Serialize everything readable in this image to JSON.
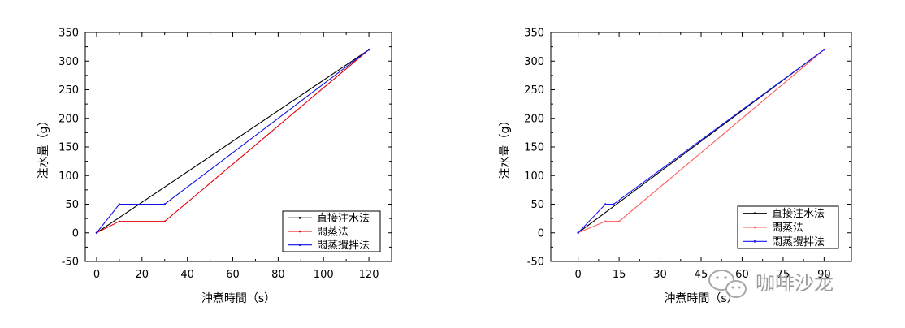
{
  "chart_data": [
    {
      "type": "line",
      "xlabel": "沖煮時間（s）",
      "ylabel": "注水量（g）",
      "xlim": [
        -5,
        130
      ],
      "ylim": [
        -50,
        350
      ],
      "xticks": [
        "0",
        "20",
        "40",
        "60",
        "80",
        "100",
        "120"
      ],
      "xtick_values": [
        0,
        20,
        40,
        60,
        80,
        100,
        120
      ],
      "yticks": [
        "-50",
        "0",
        "50",
        "100",
        "150",
        "200",
        "250",
        "300",
        "350"
      ],
      "ytick_values": [
        -50,
        0,
        50,
        100,
        150,
        200,
        250,
        300,
        350
      ],
      "legend_position": "bottom-right",
      "series": [
        {
          "name": "直接注水法",
          "color": "#000000",
          "x": [
            0,
            120
          ],
          "y": [
            0,
            320
          ]
        },
        {
          "name": "悶蒸法",
          "color": "#e8000b",
          "x": [
            0,
            10,
            30,
            120
          ],
          "y": [
            0,
            20,
            20,
            320
          ]
        },
        {
          "name": "悶蒸攪拌法",
          "color": "#1010e0",
          "x": [
            0,
            10,
            30,
            120
          ],
          "y": [
            0,
            50,
            50,
            320
          ]
        }
      ]
    },
    {
      "type": "line",
      "xlabel": "沖煮時間（s）",
      "ylabel": "注水量（g）",
      "xlim": [
        -10,
        100
      ],
      "ylim": [
        -50,
        350
      ],
      "xticks": [
        "0",
        "15",
        "30",
        "45",
        "60",
        "75",
        "90"
      ],
      "xtick_values": [
        0,
        15,
        30,
        45,
        60,
        75,
        90
      ],
      "yticks": [
        "-50",
        "0",
        "50",
        "100",
        "150",
        "200",
        "250",
        "300",
        "350"
      ],
      "ytick_values": [
        -50,
        0,
        50,
        100,
        150,
        200,
        250,
        300,
        350
      ],
      "legend_position": "bottom-right",
      "series": [
        {
          "name": "直接注水法",
          "color": "#000000",
          "x": [
            0,
            90
          ],
          "y": [
            0,
            320
          ]
        },
        {
          "name": "悶蒸法",
          "color": "#ff5a5a",
          "x": [
            0,
            10,
            15,
            90
          ],
          "y": [
            0,
            20,
            20,
            320
          ]
        },
        {
          "name": "悶蒸攪拌法",
          "color": "#1a1aff",
          "x": [
            0,
            10,
            13,
            90
          ],
          "y": [
            0,
            50,
            50,
            320
          ]
        }
      ]
    }
  ],
  "watermark": {
    "text": "咖啡沙龙",
    "icon": "wechat-icon"
  }
}
